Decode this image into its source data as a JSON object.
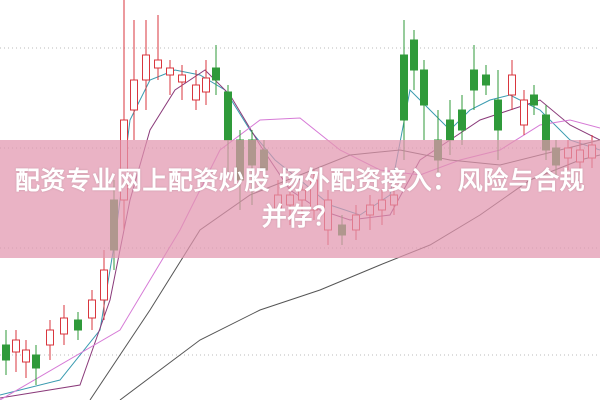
{
  "article": {
    "title": "配资专业网上配资炒股 场外配资接入：风险与合规并存？"
  },
  "colors": {
    "up_candle": "#d9363e",
    "down_candle": "#2f9a3a",
    "banner": "#e296af",
    "ma_short": "#3a9bb0",
    "ma_mid": "#8a3a7a",
    "ma_long": "#d67ad6",
    "ma_slow": "#555555"
  }
}
